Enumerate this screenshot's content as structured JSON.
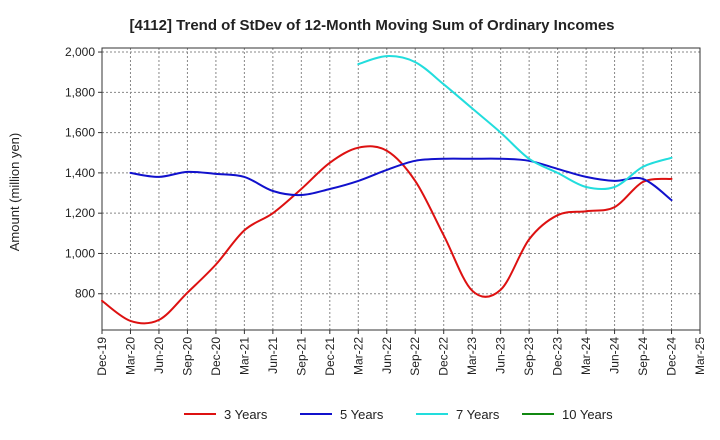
{
  "chart_data": {
    "type": "line",
    "title": "[4112]  Trend of StDev of 12-Month Moving Sum of Ordinary Incomes",
    "xlabel": "",
    "ylabel": "Amount (million yen)",
    "ylim": [
      620,
      2020
    ],
    "yticks": [
      800,
      1000,
      1200,
      1400,
      1600,
      1800,
      2000
    ],
    "ytick_labels": [
      "800",
      "1,000",
      "1,200",
      "1,400",
      "1,600",
      "1,800",
      "2,000"
    ],
    "x_categories": [
      "Dec-19",
      "Mar-20",
      "Jun-20",
      "Sep-20",
      "Dec-20",
      "Mar-21",
      "Jun-21",
      "Sep-21",
      "Dec-21",
      "Mar-22",
      "Jun-22",
      "Sep-22",
      "Dec-22",
      "Mar-23",
      "Jun-23",
      "Sep-23",
      "Dec-23",
      "Mar-24",
      "Jun-24",
      "Sep-24",
      "Dec-24",
      "Mar-25"
    ],
    "grid": true,
    "legend_position": "bottom",
    "series": [
      {
        "name": "3 Years",
        "color": "#dd1111",
        "points": [
          [
            0,
            765
          ],
          [
            1,
            665
          ],
          [
            2,
            670
          ],
          [
            3,
            805
          ],
          [
            4,
            945
          ],
          [
            5,
            1115
          ],
          [
            6,
            1200
          ],
          [
            7,
            1320
          ],
          [
            8,
            1450
          ],
          [
            9,
            1525
          ],
          [
            10,
            1510
          ],
          [
            11,
            1360
          ],
          [
            12,
            1090
          ],
          [
            13,
            815
          ],
          [
            14,
            820
          ],
          [
            15,
            1070
          ],
          [
            16,
            1190
          ],
          [
            17,
            1210
          ],
          [
            18,
            1230
          ],
          [
            19,
            1355
          ],
          [
            20,
            1370
          ]
        ]
      },
      {
        "name": "5 Years",
        "color": "#1111cc",
        "points": [
          [
            1,
            1400
          ],
          [
            2,
            1380
          ],
          [
            3,
            1405
          ],
          [
            4,
            1395
          ],
          [
            5,
            1380
          ],
          [
            6,
            1310
          ],
          [
            7,
            1290
          ],
          [
            8,
            1320
          ],
          [
            9,
            1360
          ],
          [
            10,
            1415
          ],
          [
            11,
            1460
          ],
          [
            12,
            1470
          ],
          [
            13,
            1470
          ],
          [
            14,
            1470
          ],
          [
            15,
            1460
          ],
          [
            16,
            1420
          ],
          [
            17,
            1380
          ],
          [
            18,
            1360
          ],
          [
            19,
            1370
          ],
          [
            20,
            1265
          ]
        ]
      },
      {
        "name": "7 Years",
        "color": "#22dddd",
        "points": [
          [
            9,
            1940
          ],
          [
            10,
            1980
          ],
          [
            11,
            1950
          ],
          [
            12,
            1840
          ],
          [
            13,
            1720
          ],
          [
            14,
            1600
          ],
          [
            15,
            1470
          ],
          [
            16,
            1400
          ],
          [
            17,
            1330
          ],
          [
            18,
            1330
          ],
          [
            19,
            1430
          ],
          [
            20,
            1475
          ]
        ]
      },
      {
        "name": "10 Years",
        "color": "#118811",
        "points": []
      }
    ]
  }
}
